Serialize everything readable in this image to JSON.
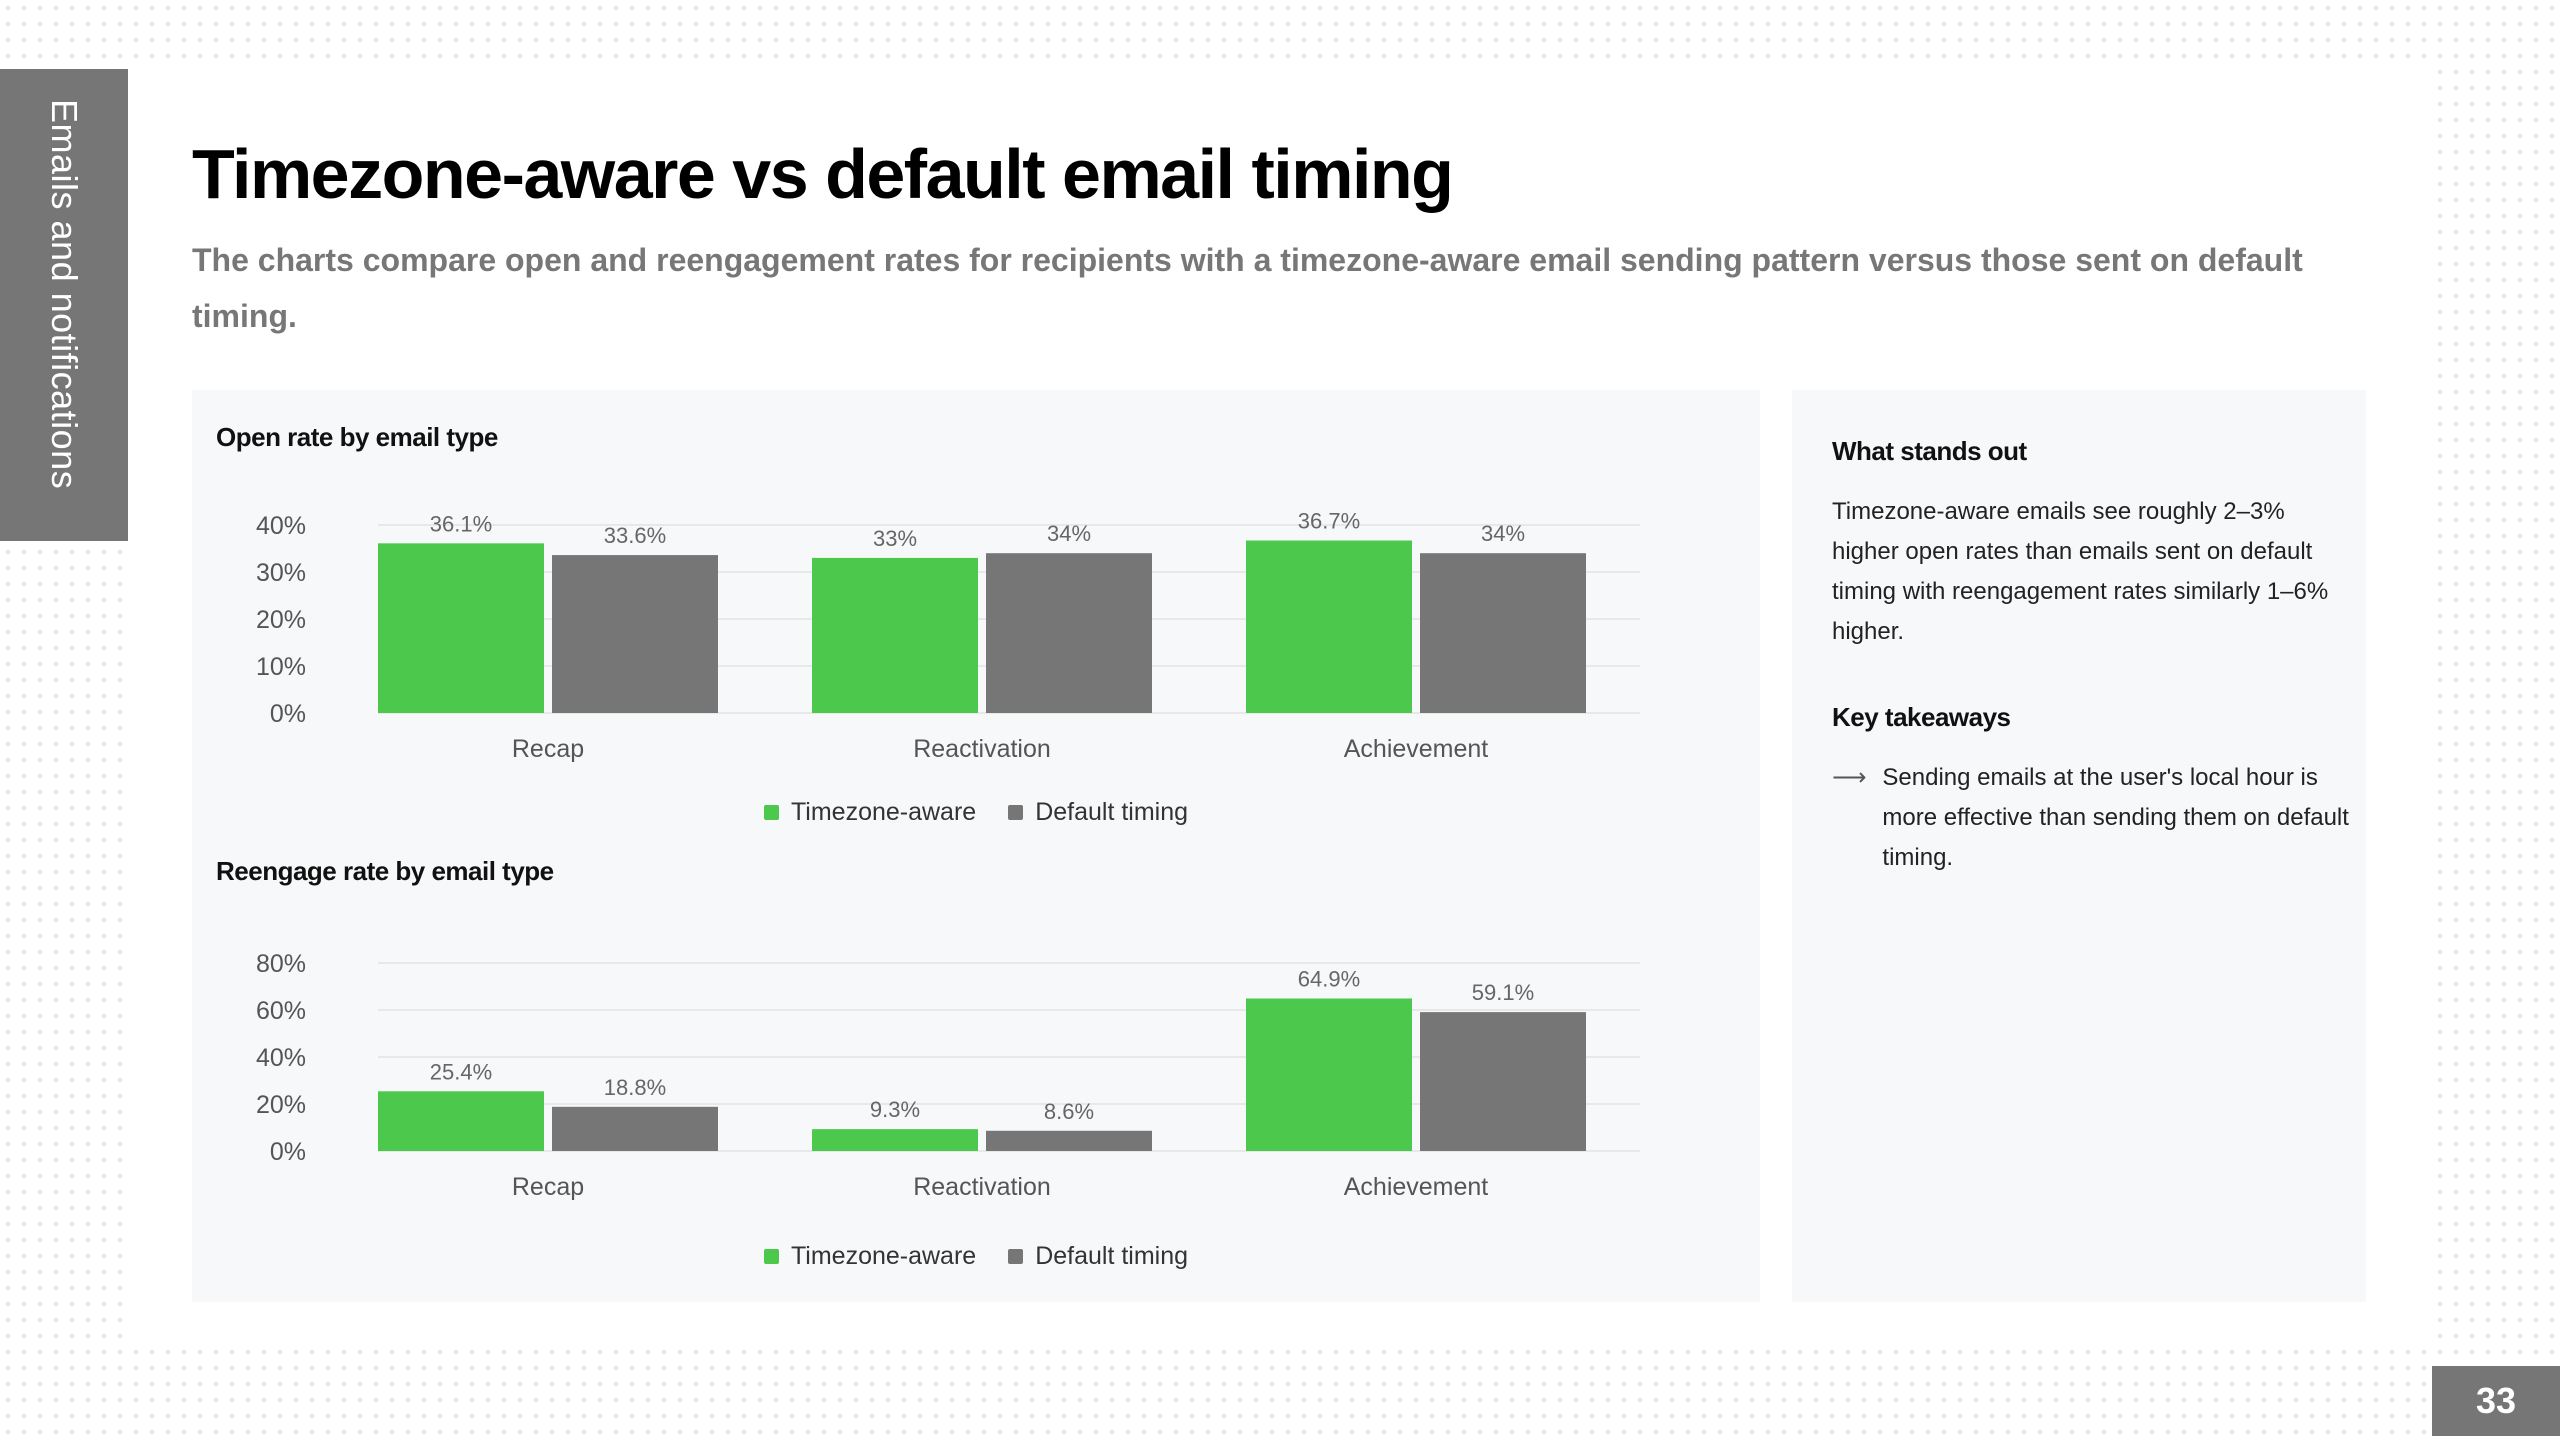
{
  "side_tab": {
    "label": "Emails and notifications"
  },
  "header": {
    "title": "Timezone-aware vs default email timing",
    "subtitle": "The charts compare open and reengagement rates for recipients with a timezone-aware email sending pattern versus those sent on default timing."
  },
  "colors": {
    "timezone_aware": "#4cc94c",
    "default_timing": "#767676",
    "grid": "#e2e2e2",
    "panel": "#f7f8fa"
  },
  "chart_data": [
    {
      "type": "bar",
      "title": "Open rate by email type",
      "categories": [
        "Recap",
        "Reactivation",
        "Achievement"
      ],
      "series": [
        {
          "name": "Timezone-aware",
          "values": [
            36.1,
            33,
            36.7
          ],
          "labels": [
            "36.1%",
            "33%",
            "36.7%"
          ]
        },
        {
          "name": "Default timing",
          "values": [
            33.6,
            34,
            34
          ],
          "labels": [
            "33.6%",
            "34%",
            "34%"
          ]
        }
      ],
      "yticks": [
        "0%",
        "10%",
        "20%",
        "30%",
        "40%"
      ],
      "ytick_values": [
        0,
        10,
        20,
        30,
        40
      ],
      "ylim": [
        0,
        40
      ],
      "grid": true,
      "legend": "bottom-center"
    },
    {
      "type": "bar",
      "title": "Reengage rate by email type",
      "categories": [
        "Recap",
        "Reactivation",
        "Achievement"
      ],
      "series": [
        {
          "name": "Timezone-aware",
          "values": [
            25.4,
            9.3,
            64.9
          ],
          "labels": [
            "25.4%",
            "9.3%",
            "64.9%"
          ]
        },
        {
          "name": "Default timing",
          "values": [
            18.8,
            8.6,
            59.1
          ],
          "labels": [
            "18.8%",
            "8.6%",
            "59.1%"
          ]
        }
      ],
      "yticks": [
        "0%",
        "20%",
        "40%",
        "60%",
        "80%"
      ],
      "ytick_values": [
        0,
        20,
        40,
        60,
        80
      ],
      "ylim": [
        0,
        80
      ],
      "grid": true,
      "legend": "bottom-center"
    }
  ],
  "legend": {
    "timezone_aware": "Timezone-aware",
    "default_timing": "Default timing"
  },
  "notes": {
    "stands_out_heading": "What stands out",
    "stands_out_text": "Timezone-aware emails see roughly 2–3% higher open rates than emails sent on default timing with reengagement rates similarly 1–6% higher.",
    "takeaways_heading": "Key takeaways",
    "takeaways": [
      "Sending emails at the user's local hour is more effective than sending them on default timing."
    ]
  },
  "page_number": "33"
}
